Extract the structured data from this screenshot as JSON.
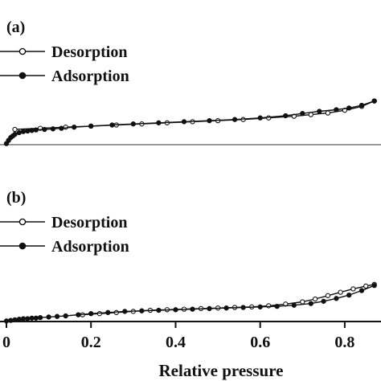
{
  "chart_data": [
    {
      "type": "line",
      "panel_label": "(a)",
      "xlim": [
        0,
        0.88
      ],
      "ylim": [
        0,
        1
      ],
      "legend_position": "top-left",
      "series": [
        {
          "name": "Desorption",
          "marker": "open-circle",
          "color": "#111111",
          "x": [
            0.02,
            0.08,
            0.14,
            0.2,
            0.26,
            0.32,
            0.38,
            0.44,
            0.5,
            0.56,
            0.62,
            0.68,
            0.72,
            0.76,
            0.8,
            0.84,
            0.87
          ],
          "y": [
            0.28,
            0.3,
            0.32,
            0.34,
            0.36,
            0.38,
            0.4,
            0.42,
            0.44,
            0.46,
            0.49,
            0.52,
            0.55,
            0.58,
            0.63,
            0.7,
            0.8
          ]
        },
        {
          "name": "Adsorption",
          "marker": "filled-circle",
          "color": "#111111",
          "x": [
            0.0,
            0.005,
            0.01,
            0.015,
            0.02,
            0.03,
            0.04,
            0.05,
            0.06,
            0.07,
            0.09,
            0.11,
            0.13,
            0.16,
            0.2,
            0.25,
            0.3,
            0.36,
            0.42,
            0.48,
            0.54,
            0.6,
            0.66,
            0.7,
            0.74,
            0.78,
            0.81,
            0.84,
            0.87
          ],
          "y": [
            0.02,
            0.08,
            0.13,
            0.16,
            0.19,
            0.22,
            0.24,
            0.25,
            0.26,
            0.27,
            0.28,
            0.29,
            0.3,
            0.32,
            0.34,
            0.36,
            0.38,
            0.4,
            0.42,
            0.44,
            0.46,
            0.49,
            0.53,
            0.57,
            0.61,
            0.64,
            0.67,
            0.72,
            0.8
          ]
        }
      ]
    },
    {
      "type": "line",
      "panel_label": "(b)",
      "xlim": [
        0,
        0.88
      ],
      "ylim": [
        0,
        1
      ],
      "legend_position": "top-left",
      "xlabel": "Relative pressure",
      "xticks": [
        "0",
        "0.2",
        "0.4",
        "0.6",
        "0.8"
      ],
      "xtick_values": [
        0,
        0.2,
        0.4,
        0.6,
        0.8
      ],
      "series": [
        {
          "name": "Desorption",
          "marker": "open-circle",
          "color": "#111111",
          "x": [
            0.18,
            0.22,
            0.26,
            0.3,
            0.34,
            0.38,
            0.42,
            0.46,
            0.5,
            0.54,
            0.58,
            0.62,
            0.66,
            0.7,
            0.73,
            0.76,
            0.79,
            0.82,
            0.85,
            0.87
          ],
          "y": [
            0.12,
            0.14,
            0.16,
            0.18,
            0.2,
            0.21,
            0.22,
            0.23,
            0.24,
            0.25,
            0.26,
            0.28,
            0.31,
            0.35,
            0.4,
            0.46,
            0.52,
            0.58,
            0.63,
            0.66
          ]
        },
        {
          "name": "Adsorption",
          "marker": "filled-circle",
          "color": "#111111",
          "x": [
            0.0,
            0.01,
            0.02,
            0.03,
            0.04,
            0.05,
            0.06,
            0.07,
            0.08,
            0.1,
            0.12,
            0.14,
            0.17,
            0.2,
            0.24,
            0.28,
            0.32,
            0.36,
            0.4,
            0.44,
            0.48,
            0.52,
            0.56,
            0.6,
            0.64,
            0.68,
            0.72,
            0.75,
            0.78,
            0.81,
            0.84,
            0.87
          ],
          "y": [
            0.01,
            0.02,
            0.03,
            0.04,
            0.05,
            0.05,
            0.06,
            0.06,
            0.07,
            0.08,
            0.09,
            0.1,
            0.12,
            0.14,
            0.16,
            0.18,
            0.19,
            0.2,
            0.21,
            0.22,
            0.23,
            0.24,
            0.25,
            0.26,
            0.27,
            0.29,
            0.32,
            0.36,
            0.41,
            0.47,
            0.55,
            0.64
          ]
        }
      ]
    }
  ]
}
